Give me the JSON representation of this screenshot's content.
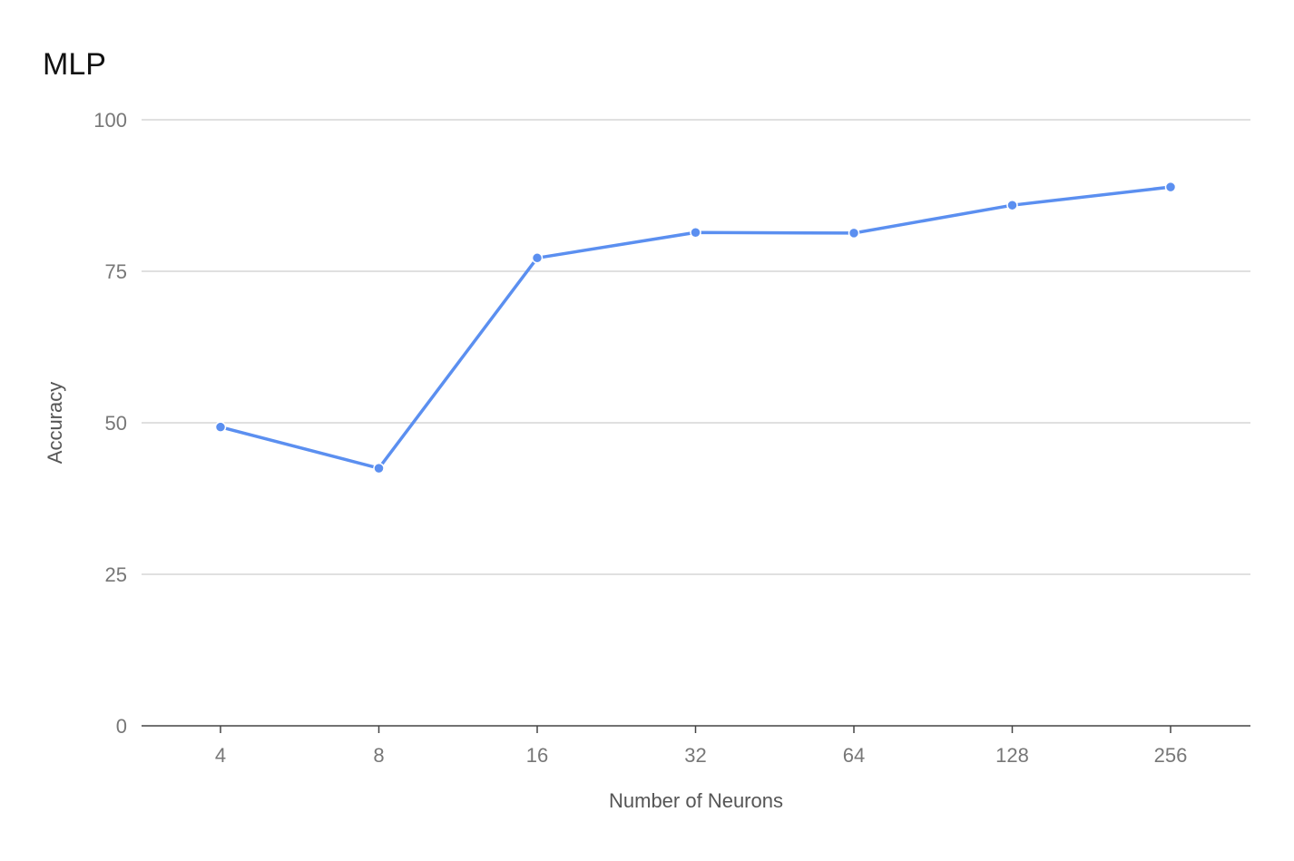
{
  "chart_data": {
    "type": "line",
    "title": "MLP",
    "xlabel": "Number of Neurons",
    "ylabel": "Accuracy",
    "categories": [
      "4",
      "8",
      "16",
      "32",
      "64",
      "128",
      "256"
    ],
    "series": [
      {
        "values": [
          49.3,
          42.5,
          77.2,
          81.4,
          81.3,
          85.9,
          88.9
        ],
        "color": "#5b8ff0"
      }
    ],
    "ylim": [
      0,
      100
    ],
    "yticks": [
      0,
      25,
      50,
      75,
      100
    ],
    "grid": true,
    "legend": "none"
  }
}
